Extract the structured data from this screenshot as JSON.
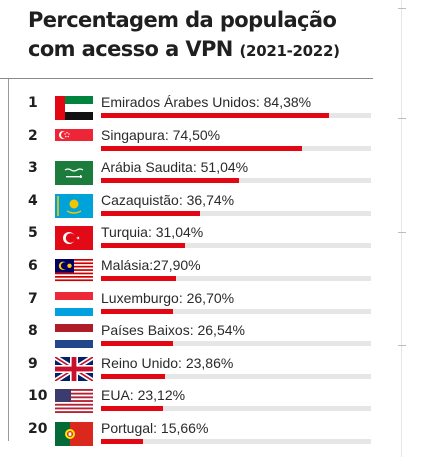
{
  "title": {
    "line1": "Percentagem da população",
    "line2": "com acesso a VPN",
    "years": "(2021-2022)"
  },
  "chart_data": {
    "type": "bar",
    "orientation": "horizontal",
    "title": "Percentagem da população com acesso a VPN (2021-2022)",
    "unit": "%",
    "xlim": [
      0,
      100
    ],
    "grid": false,
    "colors": {
      "bar": "#e30613",
      "track": "#e6e6e6"
    },
    "rows": [
      {
        "rank": "1",
        "label": "Emirados Árabes Unidos: 84,38%",
        "category": "Emirados Árabes Unidos",
        "value": 84.38,
        "flag": "uae-flag-icon"
      },
      {
        "rank": "2",
        "label": "Singapura: 74,50%",
        "category": "Singapura",
        "value": 74.5,
        "flag": "singapore-flag-icon"
      },
      {
        "rank": "3",
        "label": "Arábia Saudita: 51,04%",
        "category": "Arábia Saudita",
        "value": 51.04,
        "flag": "saudi-arabia-flag-icon"
      },
      {
        "rank": "4",
        "label": "Cazaquistão: 36,74%",
        "category": "Cazaquistão",
        "value": 36.74,
        "flag": "kazakhstan-flag-icon"
      },
      {
        "rank": "5",
        "label": "Turquia: 31,04%",
        "category": "Turquia",
        "value": 31.04,
        "flag": "turkey-flag-icon"
      },
      {
        "rank": "6",
        "label": "Malásia:27,90%",
        "category": "Malásia",
        "value": 27.9,
        "flag": "malaysia-flag-icon"
      },
      {
        "rank": "7",
        "label": "Luxemburgo: 26,70%",
        "category": "Luxemburgo",
        "value": 26.7,
        "flag": "luxembourg-flag-icon"
      },
      {
        "rank": "8",
        "label": "Países Baixos: 26,54%",
        "category": "Países Baixos",
        "value": 26.54,
        "flag": "netherlands-flag-icon"
      },
      {
        "rank": "9",
        "label": "Reino Unido: 23,86%",
        "category": "Reino Unido",
        "value": 23.86,
        "flag": "uk-flag-icon"
      },
      {
        "rank": "10",
        "label": "EUA: 23,12%",
        "category": "EUA",
        "value": 23.12,
        "flag": "usa-flag-icon"
      },
      {
        "rank": "20",
        "label": "Portugal: 15,66%",
        "category": "Portugal",
        "value": 15.66,
        "flag": "portugal-flag-icon"
      }
    ]
  }
}
